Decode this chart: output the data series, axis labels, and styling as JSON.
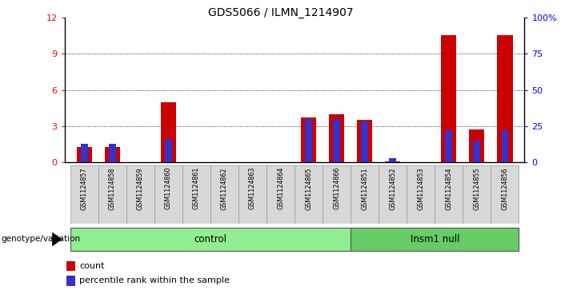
{
  "title": "GDS5066 / ILMN_1214907",
  "samples": [
    "GSM1124857",
    "GSM1124858",
    "GSM1124859",
    "GSM1124860",
    "GSM1124861",
    "GSM1124862",
    "GSM1124863",
    "GSM1124864",
    "GSM1124865",
    "GSM1124866",
    "GSM1124851",
    "GSM1124852",
    "GSM1124853",
    "GSM1124854",
    "GSM1124855",
    "GSM1124856"
  ],
  "count_values": [
    1.3,
    1.3,
    0,
    5.0,
    0,
    0,
    0,
    0,
    3.7,
    4.0,
    3.5,
    0.1,
    0,
    10.5,
    2.7,
    10.5
  ],
  "percentile_values": [
    13,
    13,
    0,
    16,
    0,
    0,
    0,
    0,
    30,
    30,
    28,
    3,
    0,
    22,
    15,
    22
  ],
  "control_count": 10,
  "insm1_count": 6,
  "ylim_left": [
    0,
    12
  ],
  "ylim_right": [
    0,
    100
  ],
  "yticks_left": [
    0,
    3,
    6,
    9,
    12
  ],
  "yticks_right": [
    0,
    25,
    50,
    75,
    100
  ],
  "ytick_labels_right": [
    "0",
    "25",
    "50",
    "75",
    "100%"
  ],
  "bar_color_red": "#cc0000",
  "bar_color_blue": "#3333cc",
  "control_color": "#90ee90",
  "insm1_color": "#66cc66",
  "genotype_label": "genotype/variation",
  "control_label": "control",
  "insm1_label": "Insm1 null",
  "legend_count": "count",
  "legend_percentile": "percentile rank within the sample",
  "bar_width": 0.55,
  "blue_bar_width": 0.25
}
